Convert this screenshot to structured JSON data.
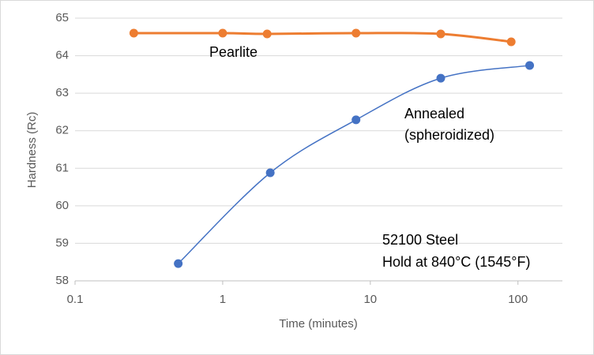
{
  "chart_data": {
    "type": "line",
    "x_label": "Time (minutes)",
    "y_label": "Hardness (Rc)",
    "xscale": "log",
    "xlim": [
      0.1,
      200
    ],
    "xticks": [
      0.1,
      1,
      10,
      100
    ],
    "ylim": [
      58,
      65
    ],
    "yticks": [
      58,
      59,
      60,
      61,
      62,
      63,
      64,
      65
    ],
    "grid": true,
    "smooth": true,
    "series": [
      {
        "name": "Pearlite",
        "color": "#ed7d31",
        "x": [
          0.25,
          1,
          2,
          8,
          30,
          90
        ],
        "values": [
          64.6,
          64.6,
          64.58,
          64.6,
          64.58,
          64.37
        ]
      },
      {
        "name": "Annealed",
        "color": "#4472c4",
        "x": [
          0.5,
          2.1,
          8,
          30,
          120
        ],
        "values": [
          58.46,
          60.88,
          62.29,
          63.4,
          63.74
        ]
      }
    ],
    "annotations": [
      "Pearlite",
      "Annealed",
      "(spheroidized)",
      "52100 Steel",
      "Hold at 840°C (1545°F)"
    ]
  }
}
